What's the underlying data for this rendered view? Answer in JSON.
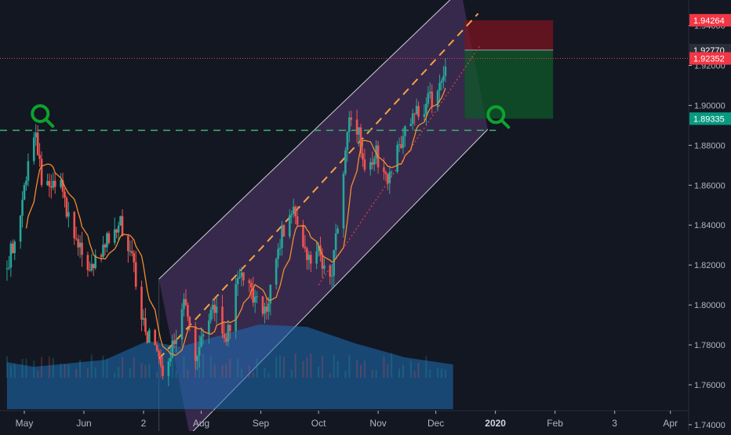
{
  "chart_data": {
    "type": "candlestick",
    "title": "",
    "xlabel": "",
    "ylabel": "",
    "ylim": [
      1.738,
      1.952
    ],
    "x_ticks": [
      "May",
      "Jun",
      "2",
      "Aug",
      "Sep",
      "Oct",
      "Nov",
      "Dec",
      "2020",
      "Feb",
      "3",
      "Apr"
    ],
    "x_tick_bold": "2020",
    "y_ticks": [
      "1.74000",
      "1.76000",
      "1.78000",
      "1.80000",
      "1.82000",
      "1.84000",
      "1.86000",
      "1.88000",
      "1.90000",
      "1.92000",
      "1.94000"
    ],
    "price_badges": [
      {
        "label": "1.94264",
        "value": 1.94264,
        "color": "#f23645"
      },
      {
        "label": "1.92770",
        "value": 1.9277,
        "color": "#2a2e39"
      },
      {
        "label": "1.92352",
        "value": 1.92352,
        "color": "#f23645"
      },
      {
        "label": "1.89335",
        "value": 1.89335,
        "color": "#089981"
      }
    ],
    "last_price": 1.92352,
    "support_level": 1.8875,
    "price_path": [
      {
        "date": "2019-04-22",
        "close": 1.818
      },
      {
        "date": "2019-04-30",
        "close": 1.85
      },
      {
        "date": "2019-05-06",
        "close": 1.887
      },
      {
        "date": "2019-05-10",
        "close": 1.865
      },
      {
        "date": "2019-05-20",
        "close": 1.858
      },
      {
        "date": "2019-05-27",
        "close": 1.835
      },
      {
        "date": "2019-06-04",
        "close": 1.815
      },
      {
        "date": "2019-06-12",
        "close": 1.832
      },
      {
        "date": "2019-06-20",
        "close": 1.842
      },
      {
        "date": "2019-06-26",
        "close": 1.822
      },
      {
        "date": "2019-07-02",
        "close": 1.79
      },
      {
        "date": "2019-07-12",
        "close": 1.767
      },
      {
        "date": "2019-07-17",
        "close": 1.778
      },
      {
        "date": "2019-07-23",
        "close": 1.803
      },
      {
        "date": "2019-07-29",
        "close": 1.773
      },
      {
        "date": "2019-08-07",
        "close": 1.8
      },
      {
        "date": "2019-08-14",
        "close": 1.782
      },
      {
        "date": "2019-08-22",
        "close": 1.82
      },
      {
        "date": "2019-08-28",
        "close": 1.802
      },
      {
        "date": "2019-09-04",
        "close": 1.798
      },
      {
        "date": "2019-09-12",
        "close": 1.835
      },
      {
        "date": "2019-09-18",
        "close": 1.848
      },
      {
        "date": "2019-09-25",
        "close": 1.822
      },
      {
        "date": "2019-10-01",
        "close": 1.826
      },
      {
        "date": "2019-10-07",
        "close": 1.812
      },
      {
        "date": "2019-10-14",
        "close": 1.862
      },
      {
        "date": "2019-10-17",
        "close": 1.898
      },
      {
        "date": "2019-10-22",
        "close": 1.885
      },
      {
        "date": "2019-10-25",
        "close": 1.872
      },
      {
        "date": "2019-10-31",
        "close": 1.875
      },
      {
        "date": "2019-11-06",
        "close": 1.862
      },
      {
        "date": "2019-11-11",
        "close": 1.878
      },
      {
        "date": "2019-11-18",
        "close": 1.895
      },
      {
        "date": "2019-11-25",
        "close": 1.9
      },
      {
        "date": "2019-12-02",
        "close": 1.905
      },
      {
        "date": "2019-12-06",
        "close": 1.924
      }
    ],
    "volume_profile": [
      {
        "date": "2019-04-22",
        "level": 0.4
      },
      {
        "date": "2019-05-06",
        "level": 0.36
      },
      {
        "date": "2019-06-12",
        "level": 0.42
      },
      {
        "date": "2019-07-04",
        "level": 0.58
      },
      {
        "date": "2019-07-21",
        "level": 0.53
      },
      {
        "date": "2019-08-05",
        "level": 0.6
      },
      {
        "date": "2019-08-31",
        "level": 0.72
      },
      {
        "date": "2019-09-25",
        "level": 0.7
      },
      {
        "date": "2019-10-20",
        "level": 0.56
      },
      {
        "date": "2019-11-15",
        "level": 0.44
      },
      {
        "date": "2019-12-10",
        "level": 0.38
      }
    ],
    "moving_average": {
      "period": 9,
      "color": "#f48c2f"
    },
    "colors": {
      "up": "#26a69a",
      "down": "#ef5350",
      "background": "#131722",
      "channel_fill": "#7b4b9c",
      "channel_line": "#cfcfd6",
      "dashed_projection": "#f7a245",
      "support": "#3aa86b",
      "marker": "#0ea12e",
      "volume": "#1e6fb8",
      "target_zone": "#0f5a2a",
      "stop_zone": "#7a1420"
    },
    "grid": false,
    "legend": "none"
  },
  "overlays": {
    "channel": {
      "lower_start": {
        "date": "2019-07-26",
        "price": 1.735
      },
      "lower_end": {
        "date": "2019-12-28",
        "price": 1.888
      },
      "upper_start": {
        "date": "2019-07-10",
        "price": 1.813
      },
      "upper_end": {
        "date": "2019-12-14",
        "price": 1.958
      }
    },
    "trend_projection": {
      "start": {
        "date": "2019-07-10",
        "price": 1.773
      },
      "end": {
        "date": "2019-12-23",
        "price": 1.946
      }
    },
    "rising_trendline": {
      "start": {
        "date": "2019-10-01",
        "price": 1.81
      },
      "end": {
        "date": "2019-12-24",
        "price": 1.93
      }
    },
    "support_markers": [
      {
        "date": "2019-05-06",
        "price": 1.8935
      },
      {
        "date": "2019-12-29",
        "price": 1.893
      }
    ],
    "position": {
      "start": "2019-12-16",
      "end": "2020-01-31",
      "stop": 1.94264,
      "entry": 1.9277,
      "target": 1.89335
    }
  }
}
